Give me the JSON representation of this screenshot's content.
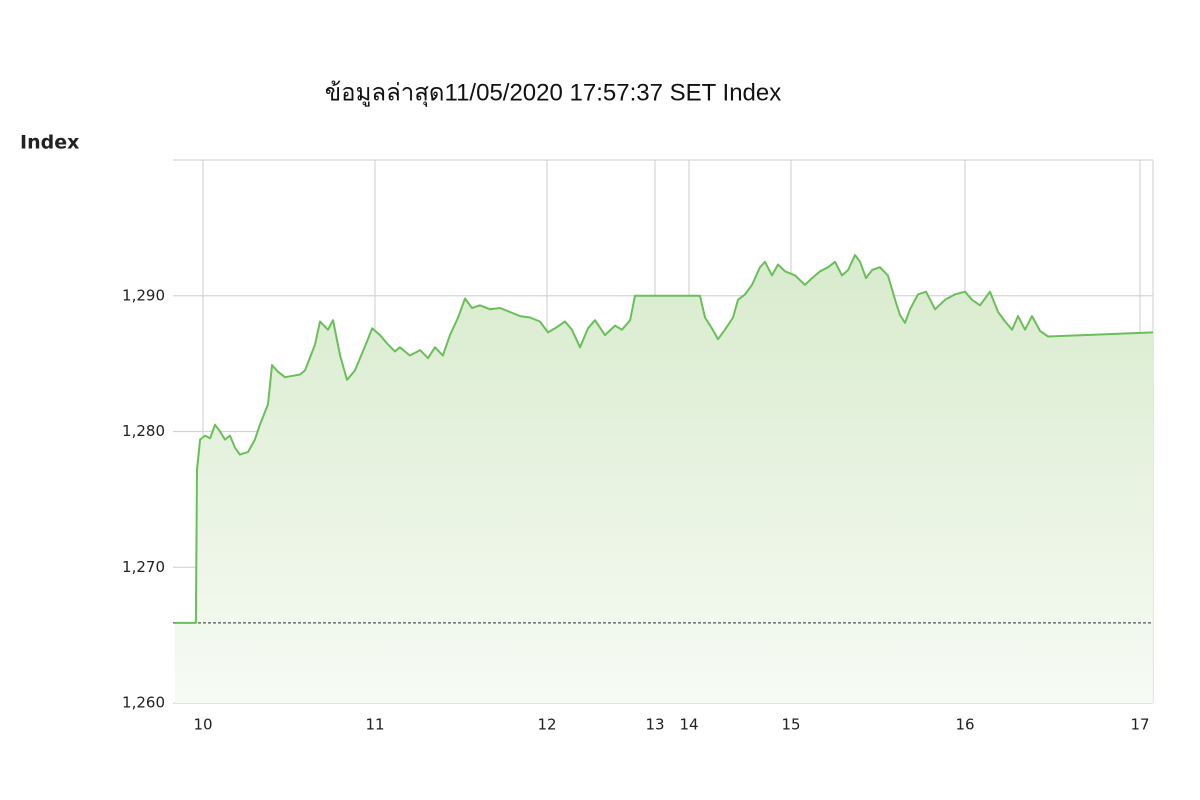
{
  "chart_data": {
    "type": "line",
    "title": "ข้อมูลล่าสุด11/05/2020 17:57:37  SET Index",
    "y_label": "Index",
    "series": [
      {
        "color": "#6abf5a",
        "x": [
          9.837,
          9.959,
          9.965,
          9.983,
          10.012,
          10.041,
          10.07,
          10.099,
          10.128,
          10.157,
          10.186,
          10.215,
          10.262,
          10.302,
          10.331,
          10.378,
          10.401,
          10.436,
          10.477,
          10.564,
          10.593,
          10.651,
          10.68,
          10.727,
          10.756,
          10.797,
          10.837,
          10.884,
          10.959,
          10.983,
          11.029,
          11.076,
          11.116,
          11.145,
          11.203,
          11.262,
          11.308,
          11.349,
          11.395,
          11.436,
          11.483,
          11.523,
          11.564,
          11.61,
          11.669,
          11.727,
          11.785,
          11.843,
          11.901,
          11.959,
          12.009,
          12.074,
          12.167,
          12.231,
          12.306,
          12.38,
          12.444,
          12.537,
          12.63,
          12.694,
          12.769,
          12.815,
          14.108,
          14.157,
          14.225,
          14.284,
          14.353,
          14.431,
          14.48,
          14.549,
          14.618,
          14.696,
          14.745,
          14.814,
          14.873,
          14.941,
          15.023,
          15.08,
          15.121,
          15.167,
          15.213,
          15.253,
          15.293,
          15.328,
          15.368,
          15.397,
          15.431,
          15.466,
          15.511,
          15.557,
          15.598,
          15.626,
          15.655,
          15.684,
          15.73,
          15.776,
          15.828,
          15.885,
          15.943,
          16.0,
          16.04,
          16.086,
          16.143,
          16.189,
          16.229,
          16.269,
          16.303,
          16.343,
          16.383,
          16.429,
          16.474,
          17.074
        ],
        "values": [
          1265.9,
          1265.9,
          1277.2,
          1279.4,
          1279.7,
          1279.5,
          1280.5,
          1280.0,
          1279.4,
          1279.7,
          1278.8,
          1278.3,
          1278.5,
          1279.4,
          1280.5,
          1282.0,
          1284.9,
          1284.4,
          1284.0,
          1284.2,
          1284.5,
          1286.4,
          1288.1,
          1287.5,
          1288.2,
          1285.6,
          1283.8,
          1284.5,
          1286.8,
          1287.6,
          1287.1,
          1286.4,
          1285.9,
          1286.2,
          1285.6,
          1286.0,
          1285.4,
          1286.2,
          1285.6,
          1287.1,
          1288.4,
          1289.8,
          1289.1,
          1289.3,
          1289.0,
          1289.1,
          1288.8,
          1288.5,
          1288.4,
          1288.1,
          1287.3,
          1287.6,
          1288.1,
          1287.5,
          1286.2,
          1287.6,
          1288.2,
          1287.1,
          1287.8,
          1287.5,
          1288.2,
          1290.0,
          1290.0,
          1288.4,
          1287.6,
          1286.8,
          1287.5,
          1288.4,
          1289.7,
          1290.1,
          1290.8,
          1292.1,
          1292.5,
          1291.5,
          1292.3,
          1291.8,
          1291.5,
          1290.8,
          1291.3,
          1291.8,
          1292.1,
          1292.5,
          1291.5,
          1291.9,
          1293.0,
          1292.5,
          1291.3,
          1291.9,
          1292.1,
          1291.5,
          1289.7,
          1288.6,
          1288.0,
          1289.0,
          1290.1,
          1290.3,
          1289.0,
          1289.7,
          1290.1,
          1290.3,
          1289.7,
          1289.3,
          1290.3,
          1288.8,
          1288.1,
          1287.5,
          1288.5,
          1287.5,
          1288.5,
          1287.4,
          1287.0,
          1287.3
        ]
      }
    ],
    "baseline": 1265.9,
    "xlim": [
      9.826,
      17.074
    ],
    "xticks": [
      10,
      11,
      12,
      13,
      14,
      15,
      16,
      17
    ],
    "ylim": [
      1260,
      1300
    ],
    "yticks": [
      {
        "value": 1260,
        "label": "1,260"
      },
      {
        "value": 1270,
        "label": "1,270"
      },
      {
        "value": 1280,
        "label": "1,280"
      },
      {
        "value": 1290,
        "label": "1,290"
      }
    ],
    "grid": true
  }
}
